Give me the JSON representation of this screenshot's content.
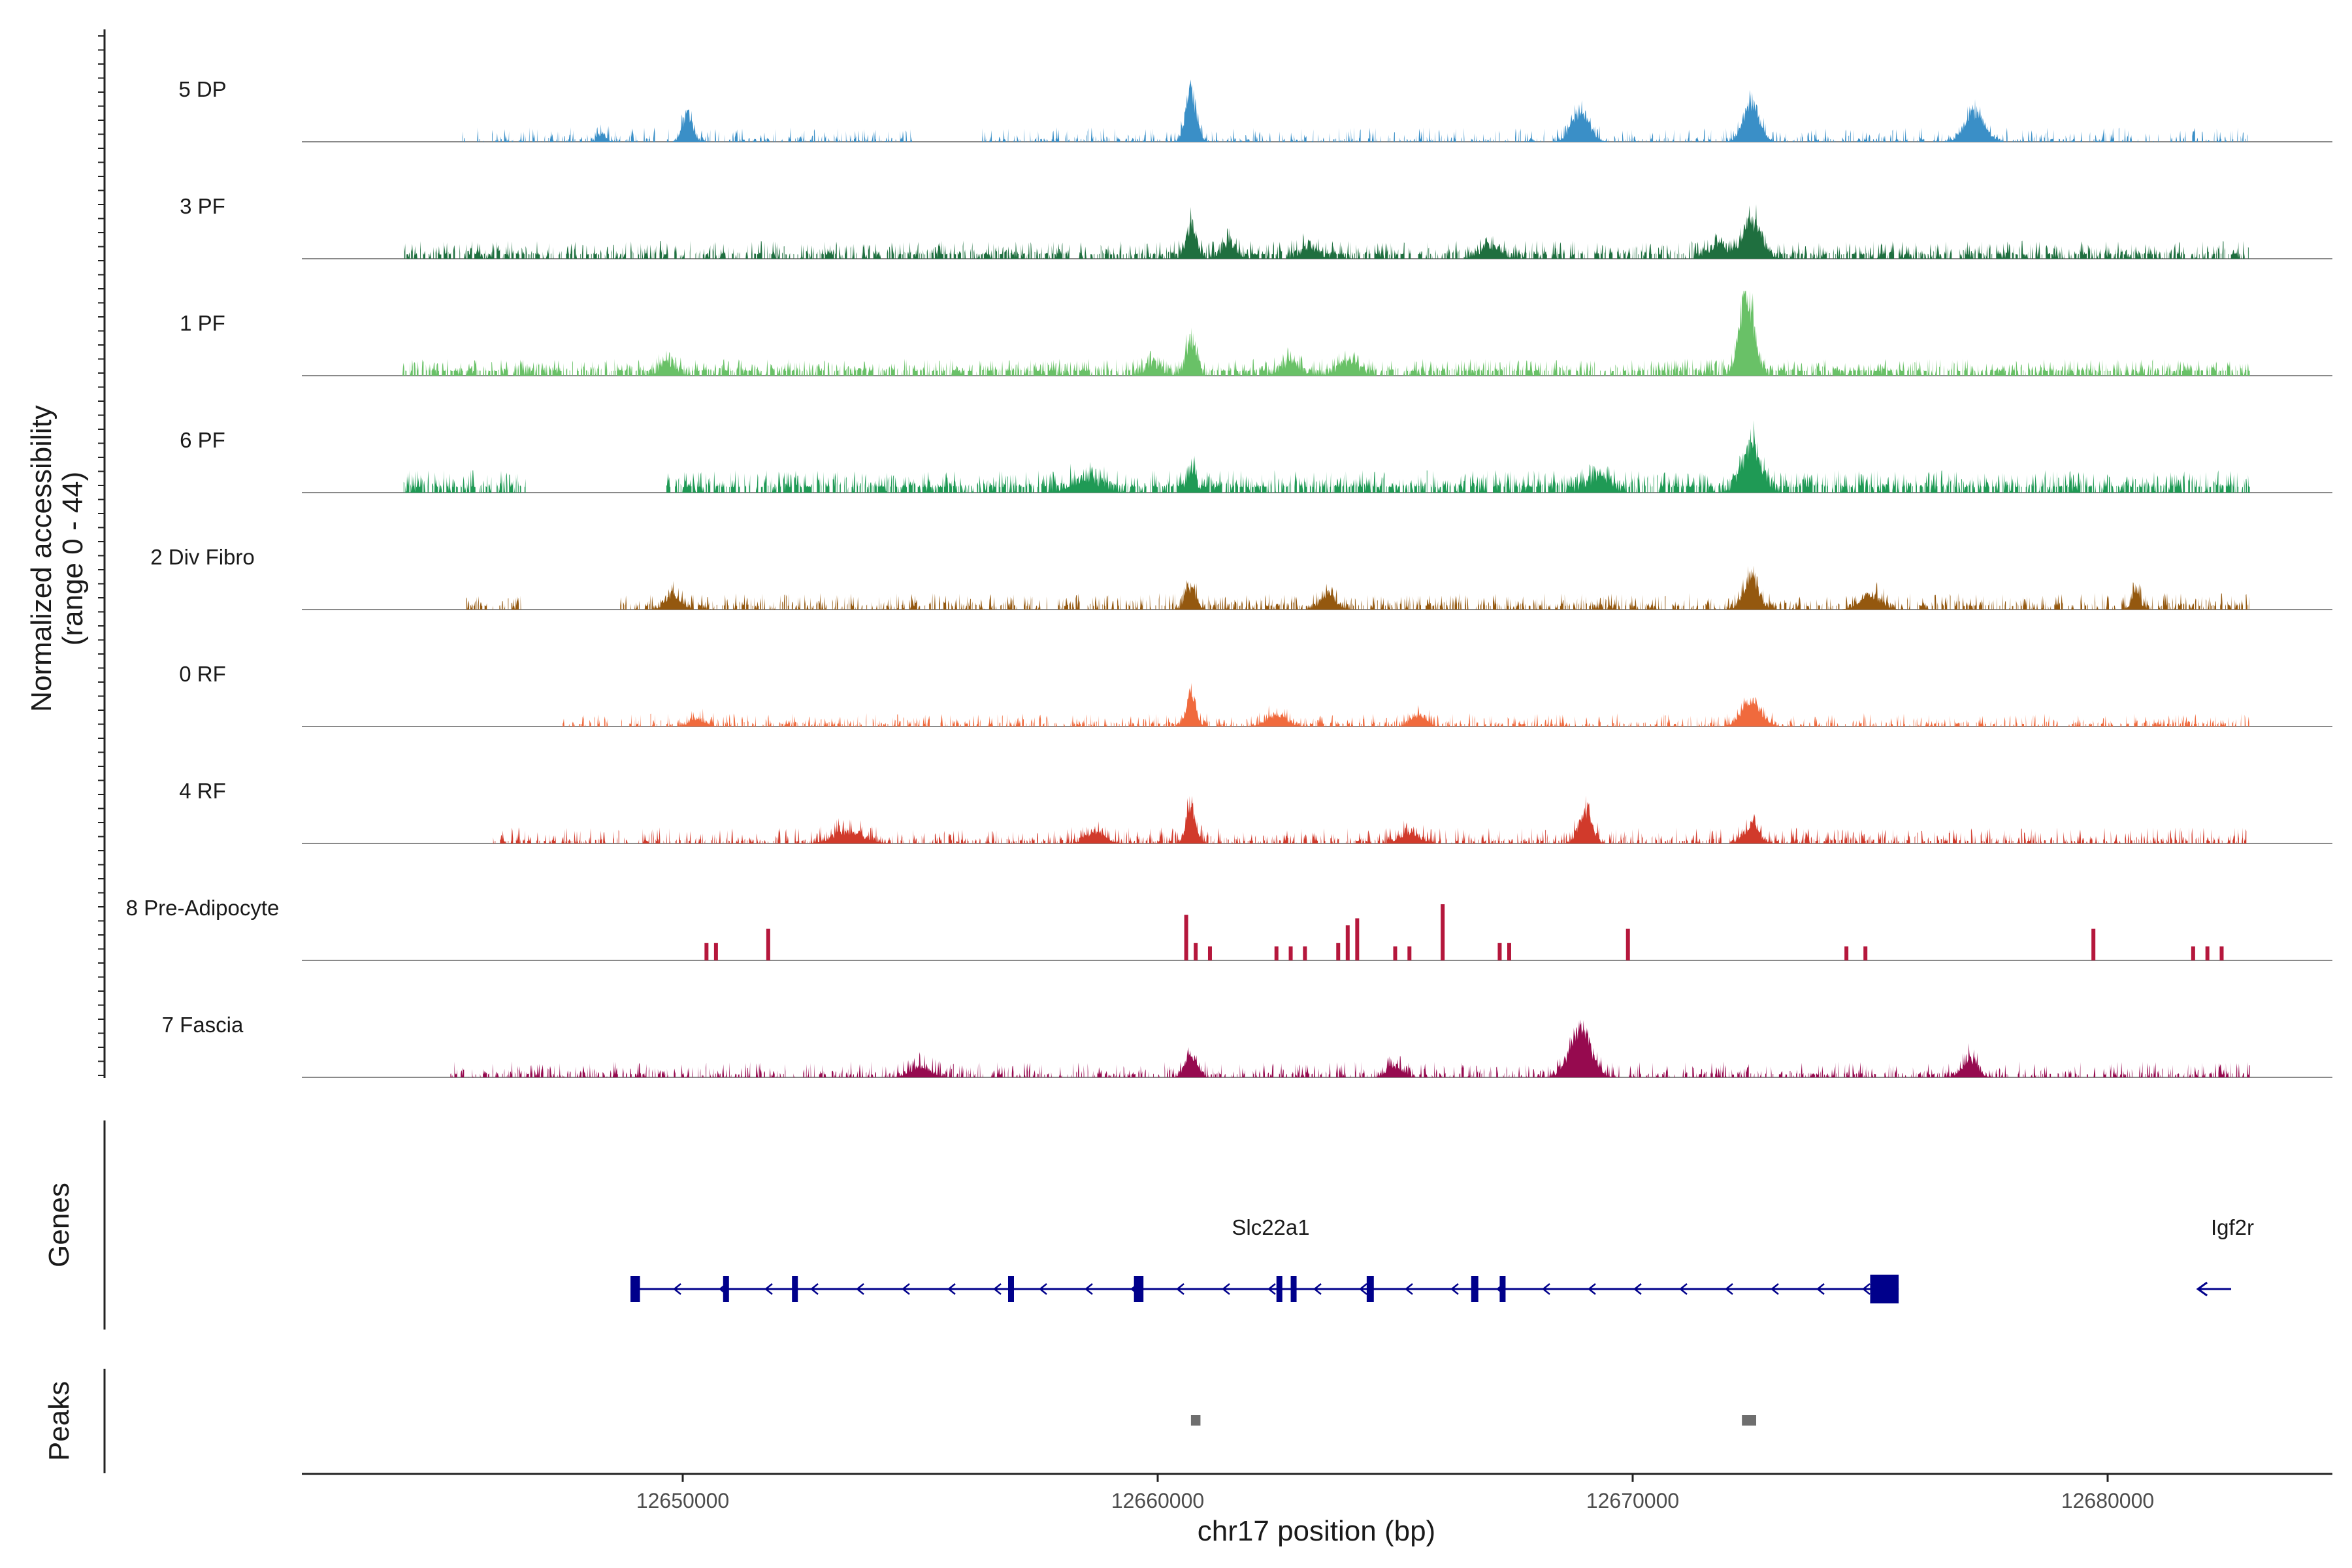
{
  "chart_data": {
    "type": "area",
    "title": "",
    "xlabel": "chr17 position (bp)",
    "ylabel": "Normalized accessibility",
    "ylabel_range": "(range 0 - 44)",
    "ylim": [
      0,
      44
    ],
    "xlim": [
      12642000,
      12685000
    ],
    "x_ticks": [
      12650000,
      12660000,
      12670000,
      12680000
    ],
    "x_tick_labels": [
      "12650000",
      "12660000",
      "12670000",
      "12680000"
    ],
    "data_start": 12644100,
    "data_end": 12683000,
    "tracks": [
      {
        "name": "5 DP",
        "color": "#3a8fc7",
        "baseline": 0.6,
        "noise": 1.6,
        "sparsity": 0.55,
        "seed": 11,
        "gaps": [
          [
            12642000,
            12645300
          ],
          [
            12654900,
            12656300
          ]
        ],
        "peaks": [
          [
            12650100,
            8,
            100
          ],
          [
            12660700,
            14,
            110
          ],
          [
            12668900,
            8,
            180
          ],
          [
            12672500,
            11,
            160
          ],
          [
            12677200,
            8,
            200
          ],
          [
            12648300,
            2,
            80
          ]
        ]
      },
      {
        "name": "3 PF",
        "color": "#1f6f3f",
        "baseline": 1.2,
        "noise": 1.8,
        "sparsity": 0.35,
        "seed": 23,
        "gaps": [],
        "peaks": [
          [
            12660700,
            9,
            100
          ],
          [
            12661500,
            4,
            140
          ],
          [
            12663200,
            3,
            160
          ],
          [
            12667000,
            3,
            200
          ],
          [
            12672500,
            10,
            200
          ],
          [
            12671800,
            4,
            150
          ]
        ]
      },
      {
        "name": "1 PF",
        "color": "#69c167",
        "baseline": 1.3,
        "noise": 1.6,
        "sparsity": 0.3,
        "seed": 37,
        "gaps": [],
        "peaks": [
          [
            12660700,
            10,
            100
          ],
          [
            12659900,
            3,
            150
          ],
          [
            12662800,
            3,
            200
          ],
          [
            12664000,
            3,
            200
          ],
          [
            12672400,
            22,
            150
          ],
          [
            12649700,
            3,
            150
          ]
        ]
      },
      {
        "name": "6 PF",
        "color": "#1f9a55",
        "baseline": 1.6,
        "noise": 2.2,
        "sparsity": 0.3,
        "seed": 41,
        "gaps": [
          [
            12646700,
            12649600
          ]
        ],
        "peaks": [
          [
            12660700,
            5,
            100
          ],
          [
            12672500,
            12,
            200
          ],
          [
            12669300,
            4,
            200
          ],
          [
            12658500,
            3,
            300
          ]
        ]
      },
      {
        "name": "2 Div Fibro",
        "color": "#94580f",
        "baseline": 1.0,
        "noise": 1.7,
        "sparsity": 0.45,
        "seed": 53,
        "gaps": [
          [
            12642000,
            12645400
          ],
          [
            12646600,
            12648600
          ]
        ],
        "peaks": [
          [
            12660700,
            6,
            100
          ],
          [
            12672500,
            8,
            150
          ],
          [
            12649800,
            4,
            150
          ],
          [
            12663600,
            4,
            150
          ],
          [
            12675000,
            4,
            200
          ],
          [
            12680600,
            4,
            90
          ]
        ]
      },
      {
        "name": "0 RF",
        "color": "#f06a3d",
        "baseline": 0.7,
        "noise": 1.4,
        "sparsity": 0.5,
        "seed": 67,
        "gaps": [
          [
            12642000,
            12647400
          ]
        ],
        "peaks": [
          [
            12660700,
            9,
            100
          ],
          [
            12672500,
            7,
            200
          ],
          [
            12665500,
            3,
            150
          ],
          [
            12662500,
            3,
            200
          ],
          [
            12650300,
            2,
            150
          ]
        ]
      },
      {
        "name": "4 RF",
        "color": "#d13a2b",
        "baseline": 0.7,
        "noise": 1.8,
        "sparsity": 0.45,
        "seed": 79,
        "gaps": [
          [
            12642000,
            12646000
          ]
        ],
        "peaks": [
          [
            12660700,
            10,
            100
          ],
          [
            12669000,
            9,
            130
          ],
          [
            12672500,
            5,
            150
          ],
          [
            12653500,
            3,
            300
          ],
          [
            12658700,
            3,
            200
          ],
          [
            12665300,
            3,
            200
          ]
        ]
      },
      {
        "name": "8 Pre-Adipocyte",
        "color": "#b5173c",
        "baseline": 0,
        "noise": 0,
        "sparsity": 1,
        "seed": 83,
        "gaps": [],
        "bars": [
          [
            12650500,
            5,
            60
          ],
          [
            12650700,
            5,
            60
          ],
          [
            12651800,
            9,
            60
          ],
          [
            12660600,
            13,
            70
          ],
          [
            12660800,
            5,
            60
          ],
          [
            12661100,
            4,
            60
          ],
          [
            12662500,
            4,
            70
          ],
          [
            12662800,
            4,
            70
          ],
          [
            12663100,
            4,
            70
          ],
          [
            12663800,
            5,
            70
          ],
          [
            12664000,
            10,
            80
          ],
          [
            12664200,
            12,
            80
          ],
          [
            12665000,
            4,
            70
          ],
          [
            12665300,
            4,
            70
          ],
          [
            12666000,
            16,
            80
          ],
          [
            12667200,
            5,
            70
          ],
          [
            12667400,
            5,
            70
          ],
          [
            12669900,
            9,
            70
          ],
          [
            12674500,
            4,
            60
          ],
          [
            12674900,
            4,
            60
          ],
          [
            12679700,
            9,
            70
          ],
          [
            12681800,
            4,
            70
          ],
          [
            12682100,
            4,
            70
          ],
          [
            12682400,
            4,
            80
          ]
        ]
      },
      {
        "name": "7 Fascia",
        "color": "#960a4f",
        "baseline": 0.8,
        "noise": 1.7,
        "sparsity": 0.5,
        "seed": 97,
        "gaps": [
          [
            12642000,
            12645100
          ]
        ],
        "peaks": [
          [
            12660700,
            6,
            120
          ],
          [
            12668900,
            13,
            220
          ],
          [
            12677100,
            5,
            150
          ],
          [
            12665000,
            3,
            150
          ],
          [
            12655000,
            3,
            200
          ]
        ]
      }
    ],
    "genes": [
      {
        "name": "Slc22a1",
        "strand": "-",
        "start": 12648900,
        "end": 12675600,
        "exons": [
          [
            12648900,
            12649100,
            "small"
          ],
          [
            12650850,
            12650950,
            "small"
          ],
          [
            12652300,
            12652400,
            "small"
          ],
          [
            12656850,
            12656950,
            "small"
          ],
          [
            12659500,
            12659700,
            "small"
          ],
          [
            12662500,
            12662600,
            "small"
          ],
          [
            12662800,
            12662900,
            "small"
          ],
          [
            12664400,
            12664550,
            "small"
          ],
          [
            12666600,
            12666750,
            "small"
          ],
          [
            12667200,
            12667300,
            "small"
          ],
          [
            12675000,
            12675600,
            "large"
          ]
        ]
      },
      {
        "name": "Igf2r",
        "strand": "-",
        "start": 12681900,
        "end": 12682600,
        "exons": []
      }
    ],
    "peaks_track": [
      [
        12660700,
        12660900
      ],
      [
        12672300,
        12672600
      ]
    ],
    "panel_titles": {
      "genes": "Genes",
      "peaks": "Peaks"
    }
  }
}
